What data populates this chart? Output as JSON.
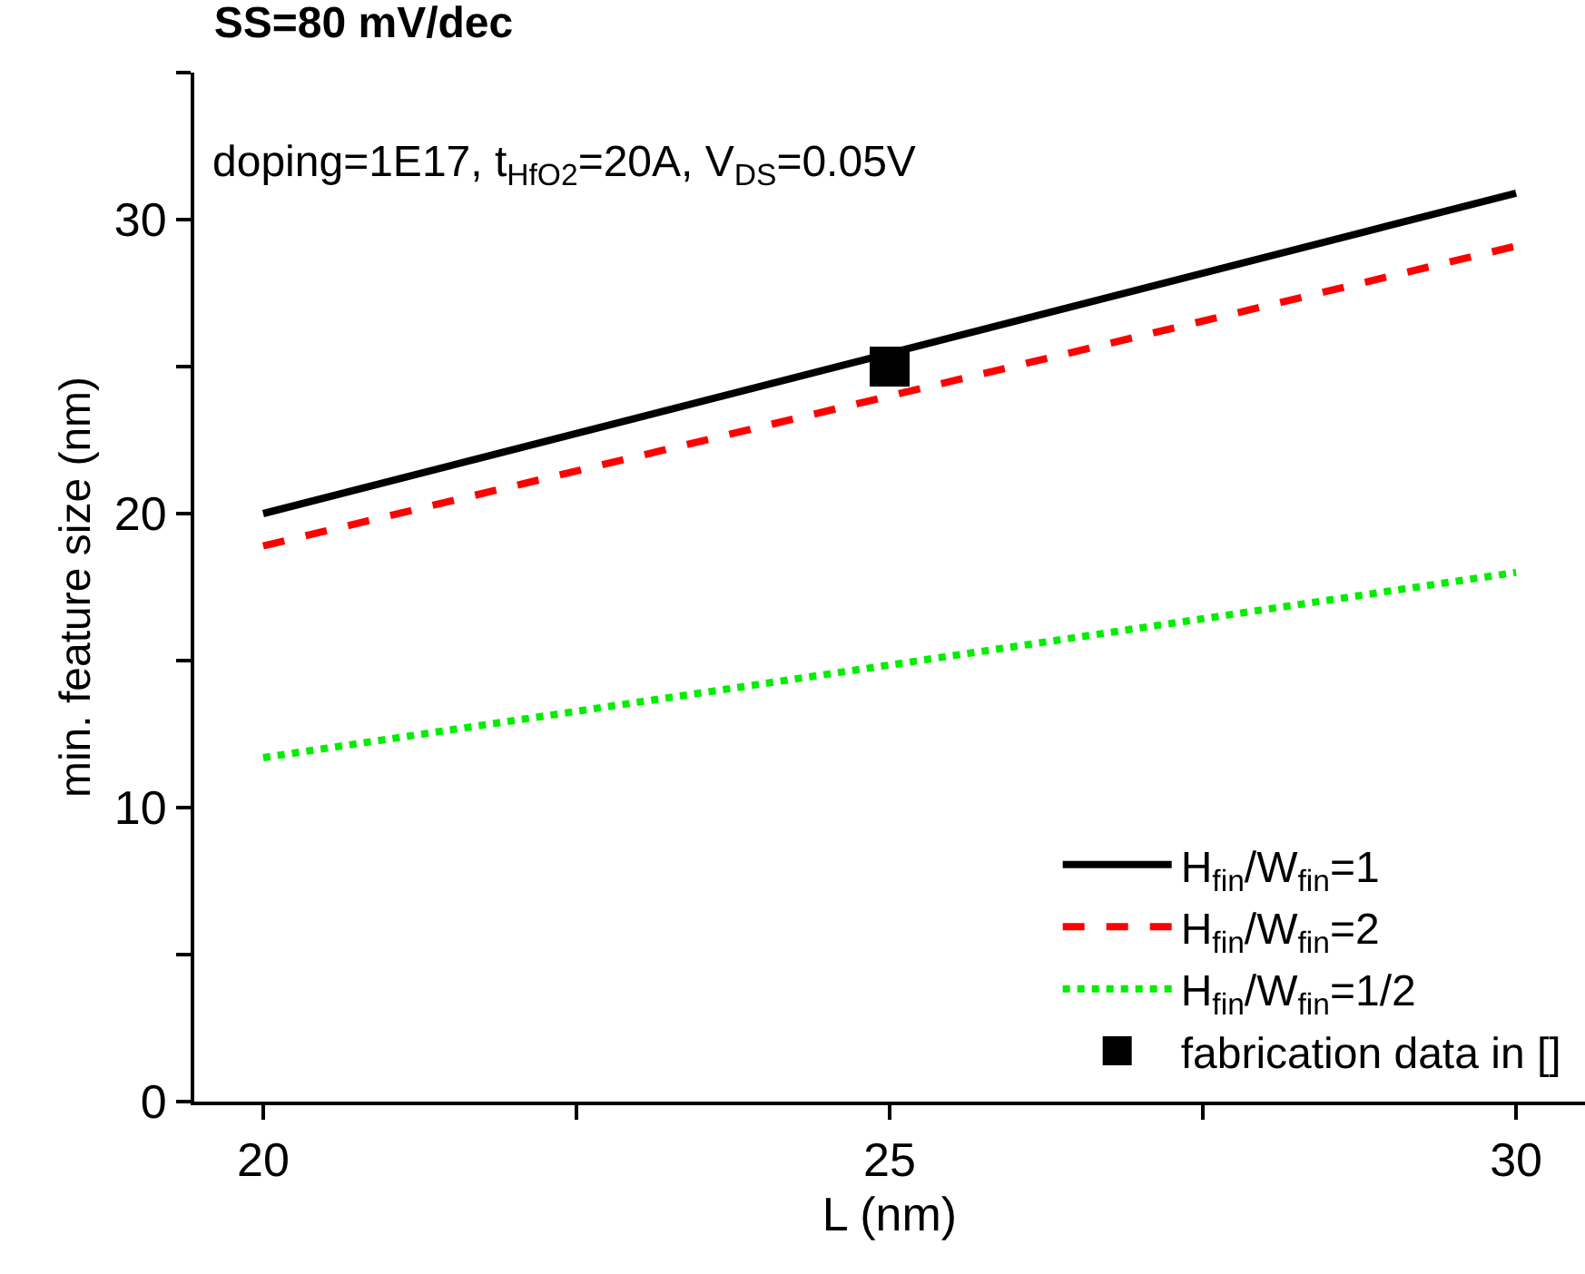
{
  "chart_data": {
    "type": "line",
    "title": "SS=80 mV/dec",
    "xlabel": "L (nm)",
    "ylabel": "min. feature size (nm)",
    "annotations": [
      "doping=1E17, t$_{HfO2}$=20A, V$_{DS}$=0.05V"
    ],
    "series": [
      {
        "name": "H$_{fin}$/W$_{fin}$=1",
        "color": "#000000",
        "x": [
          20,
          30
        ],
        "values": [
          20.0,
          30.9
        ],
        "line_style": "solid",
        "marker": "none"
      },
      {
        "name": "H$_{fin}$/W$_{fin}$=2",
        "color": "#ff0000",
        "x": [
          20,
          30
        ],
        "values": [
          18.9,
          29.1
        ],
        "line_style": "dashed",
        "marker": "none"
      },
      {
        "name": "H$_{fin}$/W$_{fin}$=1/2",
        "color": "#00ee00",
        "x": [
          20,
          30
        ],
        "values": [
          11.7,
          18.0
        ],
        "line_style": "dotted",
        "marker": "none"
      },
      {
        "name": "fabrication data in []",
        "type": "scatter",
        "color": "#000000",
        "x": [
          25
        ],
        "values": [
          25.0
        ],
        "marker": "square"
      }
    ],
    "xlim": [
      19.45,
      30.55
    ],
    "ylim": [
      0,
      35
    ],
    "xticks": [
      20,
      {
        "value": 22.5,
        "label": null
      },
      25,
      {
        "value": 27.5,
        "label": null
      },
      30
    ],
    "yticks": [
      0,
      {
        "value": 5,
        "label": null
      },
      10,
      {
        "value": 15,
        "label": null
      },
      20,
      {
        "value": 25,
        "label": null
      },
      30,
      {
        "value": 35,
        "label": null
      }
    ],
    "legend": "bottom right"
  }
}
